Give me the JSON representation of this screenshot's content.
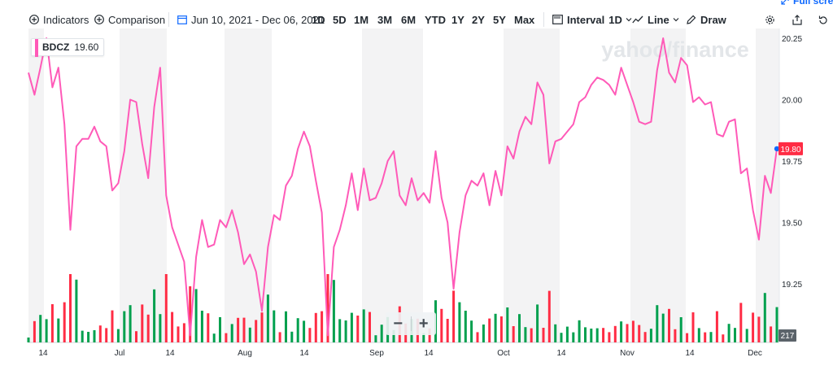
{
  "toolbar": {
    "indicators": "Indicators",
    "comparison": "Comparison",
    "date_range": "Jun 10, 2021 - Dec 06, 2021",
    "ranges": [
      "1D",
      "5D",
      "1M",
      "3M",
      "6M",
      "YTD",
      "1Y",
      "2Y",
      "5Y",
      "Max"
    ],
    "interval_label": "Interval",
    "interval_value": "1D",
    "chart_type": "Line",
    "draw": "Draw",
    "fullscreen": "Full screen"
  },
  "watermark": "yahoo/finance",
  "legend": {
    "symbol": "BDCZ",
    "value": "19.60"
  },
  "zoom": {
    "minus": "−",
    "plus": "+"
  },
  "colors": {
    "line": "#ff5ab8",
    "up_volume": "#00a04e",
    "down_volume": "#ff2c44",
    "price_badge": "#ff2c44",
    "weekend_band": "#f3f3f4"
  },
  "chart_data": {
    "type": "line",
    "series": [
      {
        "name": "BDCZ",
        "values": [
          20.11,
          20.02,
          20.13,
          20.25,
          20.05,
          20.13,
          19.9,
          19.47,
          19.81,
          19.84,
          19.84,
          19.89,
          19.83,
          19.81,
          19.63,
          19.66,
          19.79,
          20.0,
          19.99,
          19.82,
          19.68,
          19.97,
          20.13,
          19.61,
          19.48,
          19.41,
          19.34,
          19.04,
          19.36,
          19.51,
          19.4,
          19.41,
          19.51,
          19.48,
          19.55,
          19.46,
          19.33,
          19.37,
          19.3,
          19.14,
          19.4,
          19.53,
          19.51,
          19.65,
          19.69,
          19.8,
          19.87,
          19.81,
          19.67,
          19.54,
          19.04,
          19.4,
          19.47,
          19.57,
          19.7,
          19.55,
          19.72,
          19.59,
          19.6,
          19.66,
          19.75,
          19.79,
          19.61,
          19.57,
          19.68,
          19.59,
          19.62,
          19.58,
          19.79,
          19.6,
          19.5,
          19.23,
          19.46,
          19.61,
          19.67,
          19.65,
          19.7,
          19.57,
          19.71,
          19.61,
          19.81,
          19.76,
          19.87,
          19.93,
          19.9,
          20.07,
          20.02,
          19.74,
          19.83,
          19.84,
          19.87,
          19.9,
          19.99,
          20.01,
          20.06,
          20.09,
          20.08,
          20.06,
          20.02,
          20.13,
          20.06,
          19.99,
          19.91,
          19.9,
          19.91,
          20.12,
          20.25,
          20.11,
          20.07,
          20.17,
          20.14,
          19.99,
          20.01,
          19.98,
          19.99,
          19.86,
          19.85,
          19.91,
          19.92,
          19.7,
          19.72,
          19.55,
          19.43,
          19.69,
          19.62,
          19.8
        ]
      }
    ],
    "volume_label": "217",
    "last_price": "19.80",
    "yticks": [
      "19.25",
      "19.50",
      "19.75",
      "20.00",
      "20.25"
    ],
    "ylim": [
      19.0,
      20.28
    ],
    "xticks": [
      "14",
      "Jul",
      "14",
      "Aug",
      "14",
      "Sep",
      "14",
      "Oct",
      "14",
      "Nov",
      "14",
      "Dec"
    ]
  }
}
